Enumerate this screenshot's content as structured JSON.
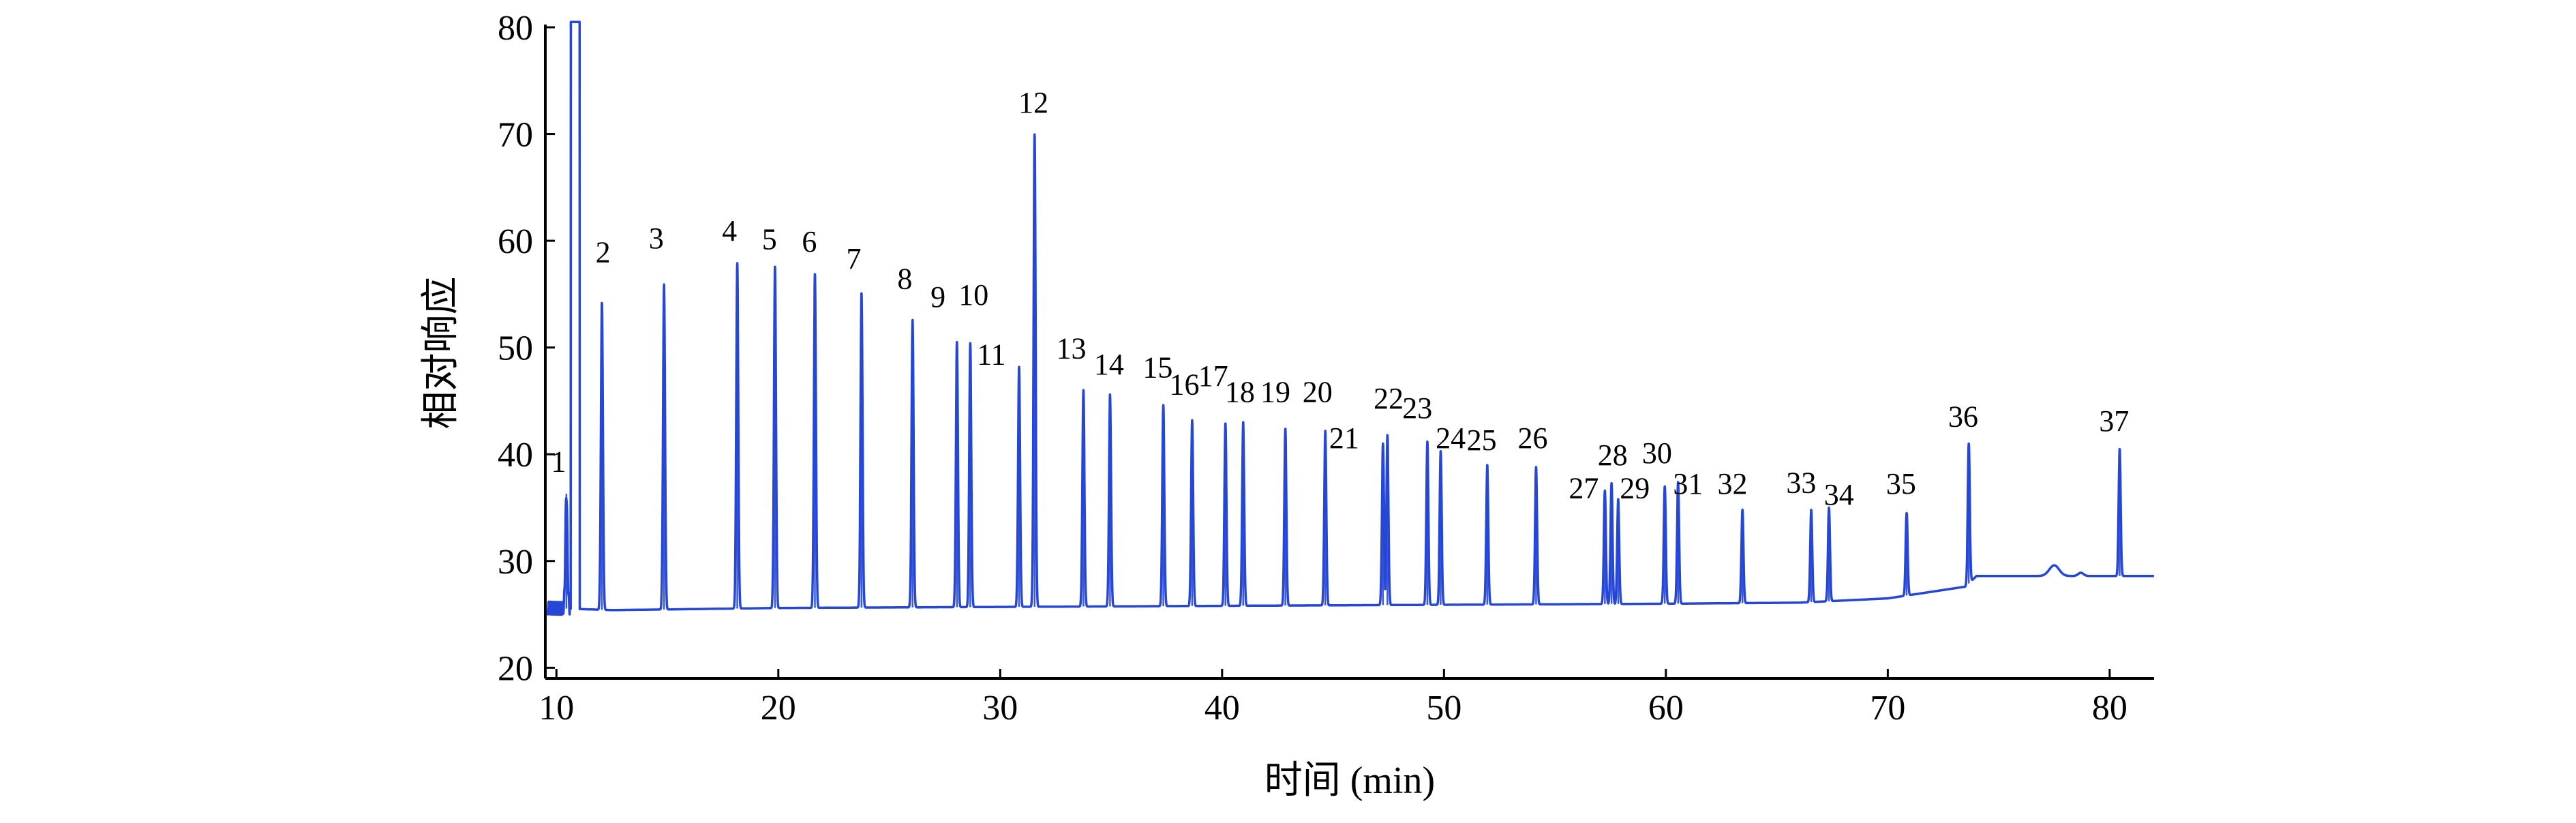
{
  "chart_data": {
    "type": "line",
    "title": "",
    "xlabel": "时间 (min)",
    "ylabel": "相对响应",
    "xlim": [
      9.5,
      82
    ],
    "ylim": [
      19,
      80
    ],
    "xticks": [
      10,
      20,
      30,
      40,
      50,
      60,
      70,
      80
    ],
    "yticks": [
      20,
      30,
      40,
      50,
      60,
      70,
      80
    ],
    "grid": false,
    "line_color": "#2647d6",
    "baseline": [
      {
        "x": 9.6,
        "y": 25.6
      },
      {
        "x": 12.5,
        "y": 25.4
      },
      {
        "x": 20,
        "y": 25.6
      },
      {
        "x": 30,
        "y": 25.7
      },
      {
        "x": 40,
        "y": 25.8
      },
      {
        "x": 50,
        "y": 25.9
      },
      {
        "x": 60,
        "y": 26.0
      },
      {
        "x": 66,
        "y": 26.1
      },
      {
        "x": 70,
        "y": 26.5
      },
      {
        "x": 73.5,
        "y": 27.6
      },
      {
        "x": 74,
        "y": 28.6
      },
      {
        "x": 77,
        "y": 28.6
      },
      {
        "x": 82,
        "y": 28.6
      }
    ],
    "solvent_peak": {
      "x": 10.85,
      "height": 80
    },
    "bumps": [
      {
        "x": 77.5,
        "height": 29.6
      },
      {
        "x": 78.7,
        "height": 28.9
      }
    ],
    "peaks": [
      {
        "label": "1",
        "x": 10.45,
        "height": 36.3
      },
      {
        "label": "2",
        "x": 12.05,
        "height": 54.2
      },
      {
        "label": "3",
        "x": 14.85,
        "height": 55.9
      },
      {
        "label": "4",
        "x": 18.15,
        "height": 57.9
      },
      {
        "label": "5",
        "x": 19.85,
        "height": 57.6
      },
      {
        "label": "6",
        "x": 21.65,
        "height": 56.9
      },
      {
        "label": "7",
        "x": 23.75,
        "height": 55.1
      },
      {
        "label": "8",
        "x": 26.05,
        "height": 52.6
      },
      {
        "label": "9",
        "x": 28.05,
        "height": 50.5
      },
      {
        "label": "10",
        "x": 28.65,
        "height": 50.4
      },
      {
        "label": "11",
        "x": 30.85,
        "height": 48.2
      },
      {
        "label": "12",
        "x": 31.55,
        "height": 70.0
      },
      {
        "label": "13",
        "x": 33.75,
        "height": 46.0
      },
      {
        "label": "14",
        "x": 34.95,
        "height": 45.6
      },
      {
        "label": "15",
        "x": 37.35,
        "height": 44.6
      },
      {
        "label": "16",
        "x": 38.65,
        "height": 43.2
      },
      {
        "label": "17",
        "x": 40.15,
        "height": 42.9
      },
      {
        "label": "18",
        "x": 40.95,
        "height": 43.0
      },
      {
        "label": "19",
        "x": 42.85,
        "height": 42.4
      },
      {
        "label": "20",
        "x": 44.65,
        "height": 42.2
      },
      {
        "label": "21",
        "x": 47.25,
        "height": 41.0
      },
      {
        "label": "22",
        "x": 47.45,
        "height": 41.8
      },
      {
        "label": "23",
        "x": 49.25,
        "height": 41.2
      },
      {
        "label": "24",
        "x": 49.85,
        "height": 40.3
      },
      {
        "label": "25",
        "x": 51.95,
        "height": 39.0
      },
      {
        "label": "26",
        "x": 54.15,
        "height": 38.8
      },
      {
        "label": "27",
        "x": 57.25,
        "height": 36.6
      },
      {
        "label": "28",
        "x": 57.55,
        "height": 37.3
      },
      {
        "label": "29",
        "x": 57.85,
        "height": 35.8
      },
      {
        "label": "30",
        "x": 59.95,
        "height": 37.0
      },
      {
        "label": "31",
        "x": 60.55,
        "height": 37.4
      },
      {
        "label": "32",
        "x": 63.45,
        "height": 34.8
      },
      {
        "label": "33",
        "x": 66.55,
        "height": 34.8
      },
      {
        "label": "34",
        "x": 67.35,
        "height": 35.0
      },
      {
        "label": "35",
        "x": 70.85,
        "height": 34.5
      },
      {
        "label": "36",
        "x": 73.65,
        "height": 41.0
      },
      {
        "label": "37",
        "x": 80.45,
        "height": 40.5
      }
    ],
    "peak_label_positions": [
      {
        "label": "1",
        "x": 10.1,
        "y": 38.4
      },
      {
        "label": "2",
        "x": 12.1,
        "y": 58.0
      },
      {
        "label": "3",
        "x": 14.5,
        "y": 59.3
      },
      {
        "label": "4",
        "x": 17.8,
        "y": 60.0
      },
      {
        "label": "5",
        "x": 19.6,
        "y": 59.2
      },
      {
        "label": "6",
        "x": 21.4,
        "y": 59.0
      },
      {
        "label": "7",
        "x": 23.4,
        "y": 57.4
      },
      {
        "label": "8",
        "x": 25.7,
        "y": 55.5
      },
      {
        "label": "9",
        "x": 27.2,
        "y": 53.8
      },
      {
        "label": "10",
        "x": 28.8,
        "y": 54.0
      },
      {
        "label": "11",
        "x": 29.6,
        "y": 48.4
      },
      {
        "label": "12",
        "x": 31.5,
        "y": 72.0
      },
      {
        "label": "13",
        "x": 33.2,
        "y": 49.0
      },
      {
        "label": "14",
        "x": 34.9,
        "y": 47.5
      },
      {
        "label": "15",
        "x": 37.1,
        "y": 47.2
      },
      {
        "label": "16",
        "x": 38.3,
        "y": 45.6
      },
      {
        "label": "17",
        "x": 39.6,
        "y": 46.4
      },
      {
        "label": "18",
        "x": 40.8,
        "y": 44.9
      },
      {
        "label": "19",
        "x": 42.4,
        "y": 44.9
      },
      {
        "label": "20",
        "x": 44.3,
        "y": 44.9
      },
      {
        "label": "21",
        "x": 45.5,
        "y": 40.6
      },
      {
        "label": "22",
        "x": 47.5,
        "y": 44.3
      },
      {
        "label": "23",
        "x": 48.8,
        "y": 43.4
      },
      {
        "label": "24",
        "x": 50.3,
        "y": 40.6
      },
      {
        "label": "25",
        "x": 51.7,
        "y": 40.4
      },
      {
        "label": "26",
        "x": 54.0,
        "y": 40.6
      },
      {
        "label": "27",
        "x": 56.3,
        "y": 35.9
      },
      {
        "label": "28",
        "x": 57.6,
        "y": 39.0
      },
      {
        "label": "29",
        "x": 58.6,
        "y": 35.9
      },
      {
        "label": "30",
        "x": 59.6,
        "y": 39.2
      },
      {
        "label": "31",
        "x": 61.0,
        "y": 36.3
      },
      {
        "label": "32",
        "x": 63.0,
        "y": 36.3
      },
      {
        "label": "33",
        "x": 66.1,
        "y": 36.4
      },
      {
        "label": "34",
        "x": 67.8,
        "y": 35.3
      },
      {
        "label": "35",
        "x": 70.6,
        "y": 36.3
      },
      {
        "label": "36",
        "x": 73.4,
        "y": 42.6
      },
      {
        "label": "37",
        "x": 80.2,
        "y": 42.2
      }
    ]
  }
}
